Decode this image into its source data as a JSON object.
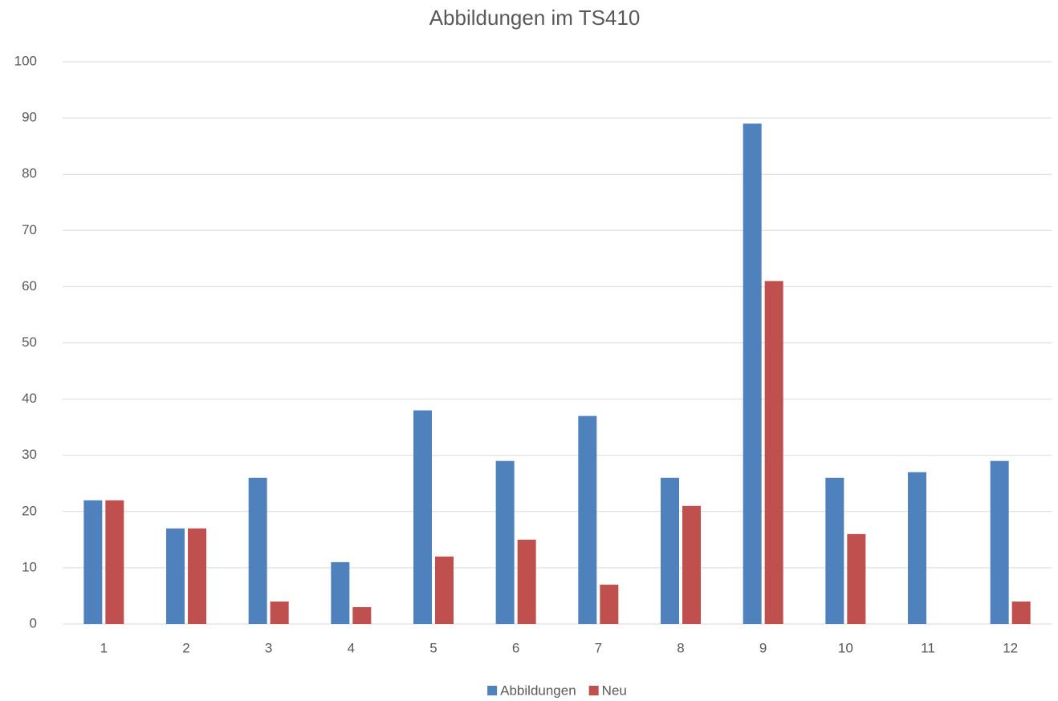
{
  "chart_data": {
    "type": "bar",
    "title": "Abbildungen im TS410",
    "categories": [
      "1",
      "2",
      "3",
      "4",
      "5",
      "6",
      "7",
      "8",
      "9",
      "10",
      "11",
      "12"
    ],
    "series": [
      {
        "name": "Abbildungen",
        "color": "#4f81bd",
        "values": [
          22,
          17,
          26,
          11,
          38,
          29,
          37,
          26,
          89,
          26,
          27,
          29
        ]
      },
      {
        "name": "Neu",
        "color": "#c0504d",
        "values": [
          22,
          17,
          4,
          3,
          12,
          15,
          7,
          21,
          61,
          16,
          0,
          4
        ]
      }
    ],
    "ylim": [
      0,
      100
    ],
    "yticks": [
      0,
      10,
      20,
      30,
      40,
      50,
      60,
      70,
      80,
      90,
      100
    ],
    "grid": true,
    "legend": "bottom"
  }
}
